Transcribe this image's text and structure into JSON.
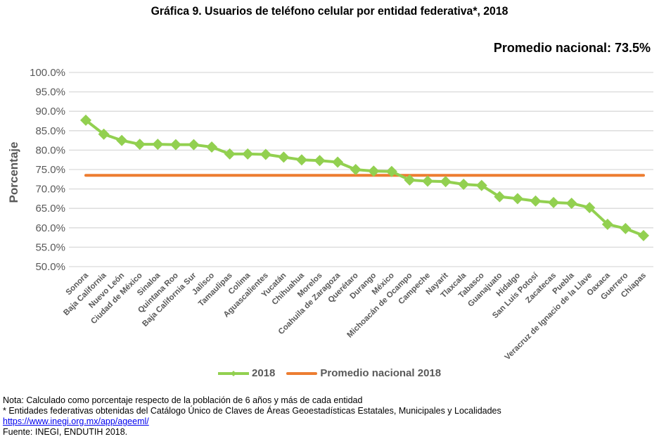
{
  "chart_data": {
    "type": "line",
    "title": "Gráfica 9. Usuarios de teléfono celular por entidad federativa*, 2018",
    "subtitle": "Promedio nacional: 73.5%",
    "xlabel": "",
    "ylabel": "Porcentaje",
    "ylim": [
      50,
      100
    ],
    "yticks": [
      "100.0%",
      "95.0%",
      "90.0%",
      "85.0%",
      "80.0%",
      "75.0%",
      "70.0%",
      "65.0%",
      "60.0%",
      "55.0%",
      "50.0%"
    ],
    "ytick_values": [
      100,
      95,
      90,
      85,
      80,
      75,
      70,
      65,
      60,
      55,
      50
    ],
    "grid": true,
    "legend_position": "bottom",
    "categories": [
      "Sonora",
      "Baja California",
      "Nuevo León",
      "Ciudad de México",
      "Sinaloa",
      "Quintana Roo",
      "Baja California Sur",
      "Jalisco",
      "Tamaulipas",
      "Colima",
      "Aguascalientes",
      "Yucatán",
      "Chihuahua",
      "Morelos",
      "Coahuila de Zaragoza",
      "Querétaro",
      "Durango",
      "México",
      "Michoacán de Ocampo",
      "Campeche",
      "Nayarit",
      "Tlaxcala",
      "Tabasco",
      "Guanajuato",
      "Hidalgo",
      "San Luis Potosí",
      "Zacatecas",
      "Puebla",
      "Veracruz de Ignacio de la Llave",
      "Oaxaca",
      "Guerrero",
      "Chiapas"
    ],
    "series": [
      {
        "name": "2018",
        "color": "#92d050",
        "marker": "diamond",
        "values": [
          87.7,
          84.1,
          82.5,
          81.5,
          81.5,
          81.4,
          81.4,
          80.8,
          79.0,
          79.0,
          78.9,
          78.2,
          77.5,
          77.3,
          76.9,
          75.0,
          74.6,
          74.5,
          72.3,
          72.0,
          71.9,
          71.2,
          70.9,
          68.0,
          67.5,
          66.9,
          66.5,
          66.3,
          65.2,
          60.9,
          59.8,
          58.0
        ]
      },
      {
        "name": "Promedio nacional 2018",
        "color": "#ed7d31",
        "marker": "none",
        "value": 73.5
      }
    ]
  },
  "notes": {
    "nota": "Nota: Calculado como porcentaje respecto de la población de 6 años y más de cada entidad",
    "asterisk": "* Entidades federativas obtenidas del Catálogo Único de Claves de Áreas Geoestadísticas Estatales, Municipales y Localidades",
    "link": "https://www.inegi.org.mx/app/ageeml/",
    "fuente": "Fuente: INEGI, ENDUTIH 2018."
  }
}
